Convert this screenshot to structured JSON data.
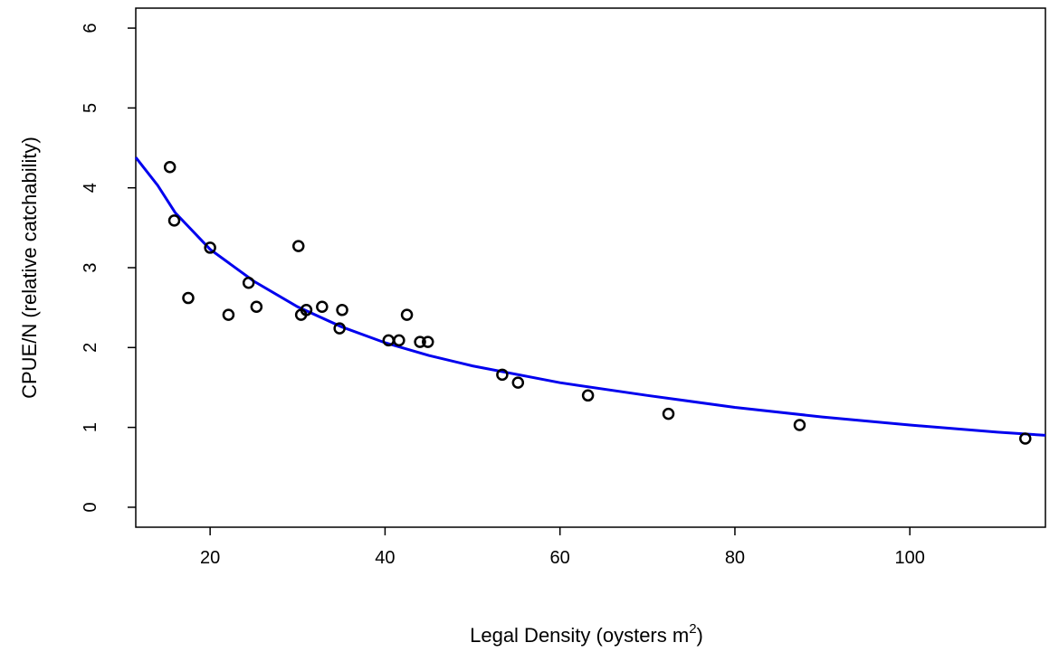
{
  "chart_data": {
    "type": "scatter",
    "title": "",
    "xlabel": "Legal Density  (oysters m",
    "xlabel_sup": "2",
    "xlabel_close": ")",
    "ylabel": "CPUE/N (relative catchability)",
    "xlim": [
      11.5,
      115.5
    ],
    "ylim": [
      -0.25,
      6.25
    ],
    "xticks": [
      20,
      40,
      60,
      80,
      100
    ],
    "yticks": [
      0,
      1,
      2,
      3,
      4,
      5,
      6
    ],
    "grid": false,
    "legend": "none",
    "points": {
      "x": [
        15.4,
        15.9,
        17.5,
        20.0,
        22.1,
        24.4,
        25.3,
        30.1,
        30.4,
        31.0,
        32.8,
        34.8,
        35.1,
        40.4,
        41.6,
        42.5,
        44.0,
        44.9,
        53.4,
        55.2,
        63.2,
        72.4,
        87.4,
        113.2
      ],
      "y": [
        4.26,
        3.59,
        2.62,
        3.25,
        2.41,
        2.81,
        2.51,
        3.27,
        2.41,
        2.47,
        2.51,
        2.24,
        2.47,
        2.09,
        2.09,
        2.41,
        2.07,
        2.07,
        1.66,
        1.56,
        1.4,
        1.17,
        1.03,
        0.86
      ]
    },
    "fit_curve": {
      "color": "#0000ee",
      "x": [
        11.5,
        14,
        16,
        20,
        25,
        30,
        35,
        40,
        45,
        50,
        60,
        70,
        80,
        90,
        100,
        110,
        115.5
      ],
      "y": [
        4.38,
        4.03,
        3.69,
        3.23,
        2.83,
        2.51,
        2.26,
        2.06,
        1.9,
        1.77,
        1.56,
        1.4,
        1.25,
        1.13,
        1.03,
        0.94,
        0.9
      ]
    },
    "colors": {
      "points": "#000000",
      "axis": "#000000",
      "fit": "#0000ee"
    }
  }
}
